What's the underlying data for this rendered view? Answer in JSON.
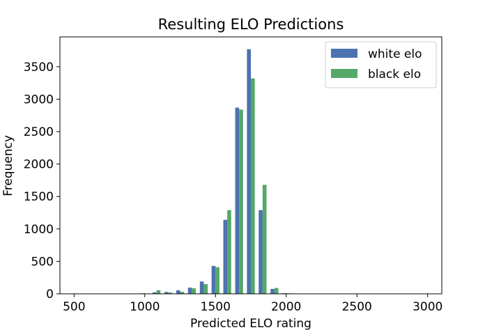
{
  "chart_data": {
    "type": "bar",
    "title": "Resulting ELO Predictions",
    "xlabel": "Predicted ELO rating",
    "ylabel": "Frequency",
    "xlim": [
      400,
      3100
    ],
    "ylim": [
      0,
      3960
    ],
    "x_ticks": [
      500,
      1000,
      1500,
      2000,
      2500,
      3000
    ],
    "y_ticks": [
      0,
      500,
      1000,
      1500,
      2000,
      2500,
      3000,
      3500
    ],
    "bin_centers": [
      1000,
      1083,
      1167,
      1250,
      1333,
      1417,
      1500,
      1583,
      1667,
      1750,
      1833,
      1917,
      2000
    ],
    "series": [
      {
        "name": "white elo",
        "color": "#4c72b0",
        "values": [
          8,
          22,
          28,
          55,
          95,
          190,
          430,
          1140,
          2870,
          3770,
          1290,
          75,
          10
        ]
      },
      {
        "name": "black elo",
        "color": "#55a868",
        "values": [
          5,
          55,
          20,
          30,
          85,
          150,
          410,
          1290,
          2840,
          3320,
          1680,
          90,
          8
        ]
      }
    ],
    "legend": "top-right",
    "grid": false
  }
}
